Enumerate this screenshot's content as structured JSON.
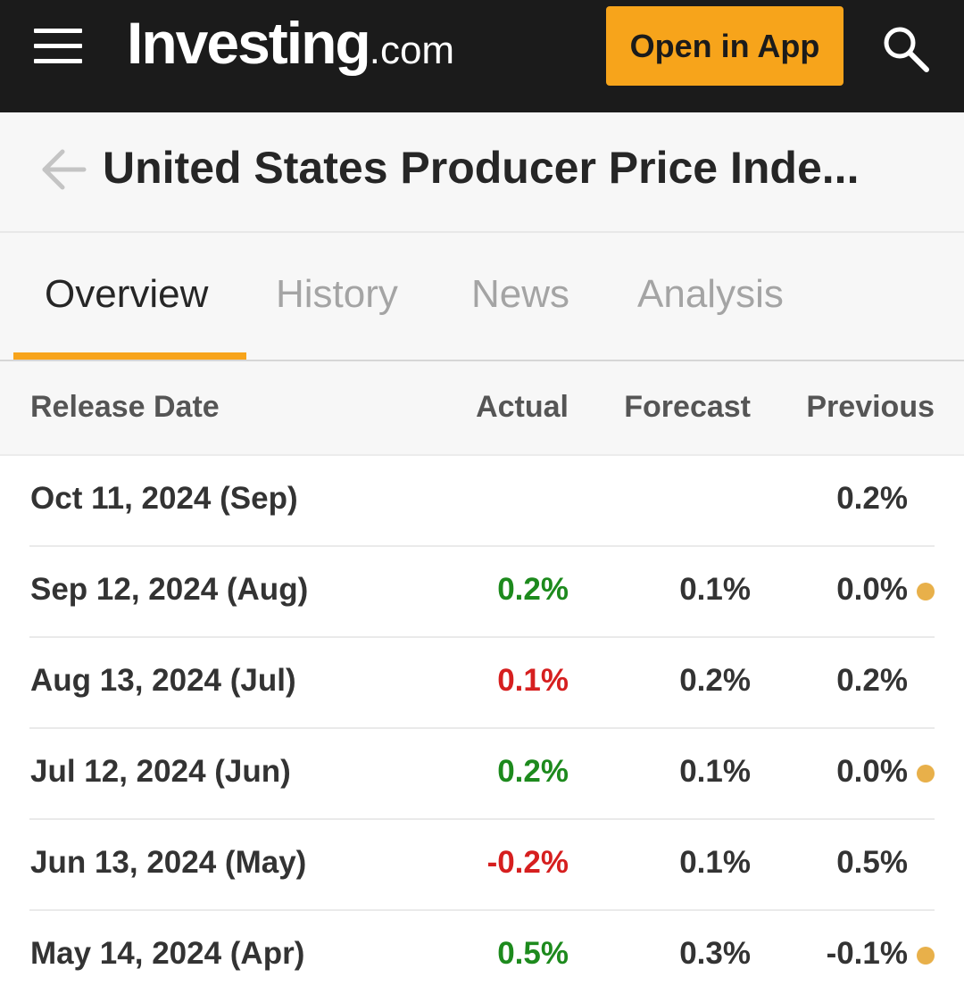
{
  "header": {
    "logo_main": "Investing",
    "logo_suffix": ".com",
    "open_app_label": "Open in App"
  },
  "title": "United States Producer Price Inde...",
  "tabs": [
    {
      "label": "Overview",
      "active": true
    },
    {
      "label": "History",
      "active": false
    },
    {
      "label": "News",
      "active": false
    },
    {
      "label": "Analysis",
      "active": false
    }
  ],
  "table": {
    "columns": [
      "Release Date",
      "Actual",
      "Forecast",
      "Previous"
    ],
    "rows": [
      {
        "date": "Oct 11, 2024 (Sep)",
        "actual": "",
        "actual_status": "none",
        "forecast": "",
        "previous": "0.2%",
        "revised": false
      },
      {
        "date": "Sep 12, 2024 (Aug)",
        "actual": "0.2%",
        "actual_status": "positive",
        "forecast": "0.1%",
        "previous": "0.0%",
        "revised": true
      },
      {
        "date": "Aug 13, 2024 (Jul)",
        "actual": "0.1%",
        "actual_status": "negative",
        "forecast": "0.2%",
        "previous": "0.2%",
        "revised": false
      },
      {
        "date": "Jul 12, 2024 (Jun)",
        "actual": "0.2%",
        "actual_status": "positive",
        "forecast": "0.1%",
        "previous": "0.0%",
        "revised": true
      },
      {
        "date": "Jun 13, 2024 (May)",
        "actual": "-0.2%",
        "actual_status": "negative",
        "forecast": "0.1%",
        "previous": "0.5%",
        "revised": false
      },
      {
        "date": "May 14, 2024 (Apr)",
        "actual": "0.5%",
        "actual_status": "positive",
        "forecast": "0.3%",
        "previous": "-0.1%",
        "revised": true
      }
    ]
  },
  "colors": {
    "accent": "#f7a41b",
    "positive": "#1d8a1d",
    "negative": "#d61f1f",
    "revised_dot": "#e8b04a"
  }
}
